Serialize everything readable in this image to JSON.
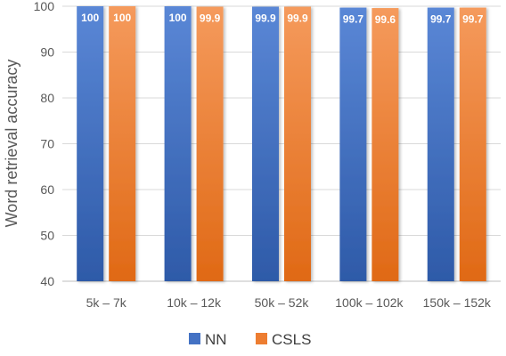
{
  "chart_data": {
    "type": "bar",
    "categories": [
      "5k – 7k",
      "10k – 12k",
      "50k – 52k",
      "100k – 102k",
      "150k – 152k"
    ],
    "series": [
      {
        "name": "NN",
        "values": [
          100,
          100,
          99.9,
          99.7,
          99.7
        ],
        "labels": [
          "100",
          "100",
          "99.9",
          "99.7",
          "99.7"
        ],
        "color": "#4472c4"
      },
      {
        "name": "CSLS",
        "values": [
          100,
          99.9,
          99.9,
          99.6,
          99.7
        ],
        "labels": [
          "100",
          "99.9",
          "99.9",
          "99.6",
          "99.7"
        ],
        "color": "#ed7d31"
      }
    ],
    "ylabel": "Word retrieval accuracy",
    "ylim": [
      40,
      100
    ],
    "yticks": [
      40,
      50,
      60,
      70,
      80,
      90,
      100
    ],
    "grid": true,
    "legend": "bottom"
  }
}
